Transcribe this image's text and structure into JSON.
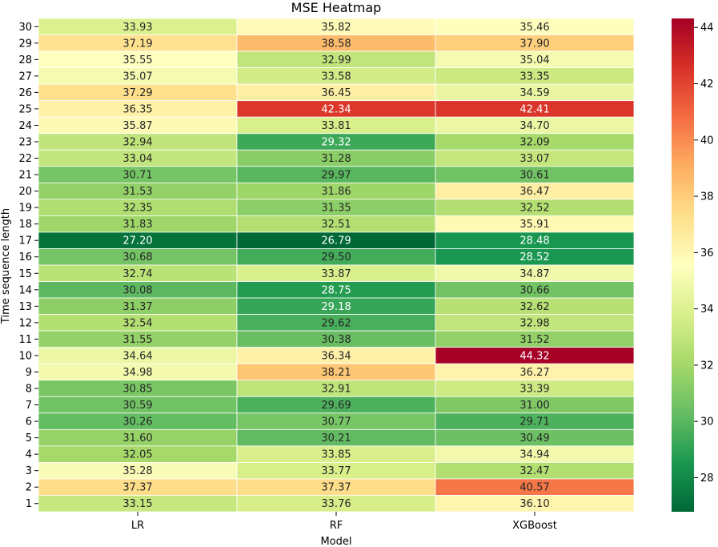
{
  "chart_data": {
    "type": "heatmap",
    "title": "MSE Heatmap",
    "xlabel": "Model",
    "ylabel": "Time sequence length",
    "columns": [
      "LR",
      "RF",
      "XGBoost"
    ],
    "rows": [
      "30",
      "29",
      "28",
      "27",
      "26",
      "25",
      "24",
      "23",
      "22",
      "21",
      "20",
      "19",
      "18",
      "17",
      "16",
      "15",
      "14",
      "13",
      "12",
      "11",
      "10",
      "9",
      "8",
      "7",
      "6",
      "5",
      "4",
      "3",
      "2",
      "1"
    ],
    "values": [
      [
        33.93,
        35.82,
        35.46
      ],
      [
        37.19,
        38.58,
        37.9
      ],
      [
        35.55,
        32.99,
        35.04
      ],
      [
        35.07,
        33.58,
        33.35
      ],
      [
        37.29,
        36.45,
        34.59
      ],
      [
        36.35,
        42.34,
        42.41
      ],
      [
        35.87,
        33.81,
        34.7
      ],
      [
        32.94,
        29.32,
        32.09
      ],
      [
        33.04,
        31.28,
        33.07
      ],
      [
        30.71,
        29.97,
        30.61
      ],
      [
        31.53,
        31.86,
        36.47
      ],
      [
        32.35,
        31.35,
        32.52
      ],
      [
        31.83,
        32.51,
        35.91
      ],
      [
        27.2,
        26.79,
        28.48
      ],
      [
        30.68,
        29.5,
        28.52
      ],
      [
        32.74,
        33.87,
        34.87
      ],
      [
        30.08,
        28.75,
        30.66
      ],
      [
        31.37,
        29.18,
        32.62
      ],
      [
        32.54,
        29.62,
        32.98
      ],
      [
        31.55,
        30.38,
        31.52
      ],
      [
        34.64,
        36.34,
        44.32
      ],
      [
        34.98,
        38.21,
        36.27
      ],
      [
        30.85,
        32.91,
        33.39
      ],
      [
        30.59,
        29.69,
        31.0
      ],
      [
        30.26,
        30.77,
        29.71
      ],
      [
        31.6,
        30.21,
        30.49
      ],
      [
        32.05,
        33.85,
        34.94
      ],
      [
        35.28,
        33.77,
        32.47
      ],
      [
        37.37,
        37.37,
        40.57
      ],
      [
        33.15,
        33.76,
        36.1
      ]
    ],
    "value_format": "2 decimals",
    "colormap": "RdYlGn_r",
    "colorbar": {
      "min": 26.79,
      "max": 44.32,
      "ticks": [
        28,
        30,
        32,
        34,
        36,
        38,
        40,
        42,
        44
      ]
    }
  }
}
